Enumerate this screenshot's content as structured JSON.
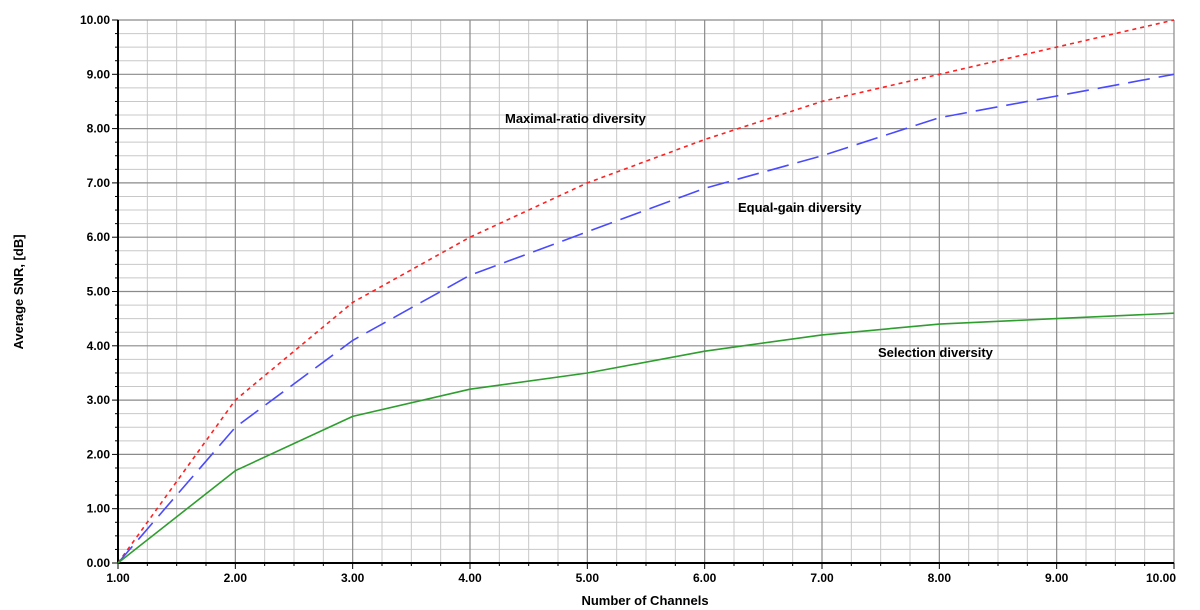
{
  "chart_data": {
    "type": "line",
    "xlabel": "Number of Channels",
    "ylabel": "Average SNR, [dB]",
    "xlim": [
      1,
      10
    ],
    "ylim": [
      0,
      10
    ],
    "grid": true,
    "x_ticks": [
      "1.00",
      "2.00",
      "3.00",
      "4.00",
      "5.00",
      "6.00",
      "7.00",
      "8.00",
      "9.00",
      "10.00"
    ],
    "y_ticks": [
      "0.00",
      "1.00",
      "2.00",
      "3.00",
      "4.00",
      "5.00",
      "6.00",
      "7.00",
      "8.00",
      "9.00",
      "10.00"
    ],
    "x": [
      1,
      2,
      3,
      4,
      5,
      6,
      7,
      8,
      9,
      10
    ],
    "series": [
      {
        "name": "Maximal-ratio diversity",
        "values": [
          0,
          3.0,
          4.8,
          6.0,
          7.0,
          7.8,
          8.5,
          9.0,
          9.5,
          10.0
        ],
        "color": "#ff2020",
        "dash": "dotted"
      },
      {
        "name": "Equal-gain diversity",
        "values": [
          0,
          2.5,
          4.1,
          5.3,
          6.1,
          6.9,
          7.5,
          8.2,
          8.6,
          9.0
        ],
        "color": "#4a4aff",
        "dash": "dashed"
      },
      {
        "name": "Selection diversity",
        "values": [
          0,
          1.7,
          2.7,
          3.2,
          3.5,
          3.9,
          4.2,
          4.4,
          4.5,
          4.6
        ],
        "color": "#2e9e2e",
        "dash": "solid"
      }
    ]
  }
}
